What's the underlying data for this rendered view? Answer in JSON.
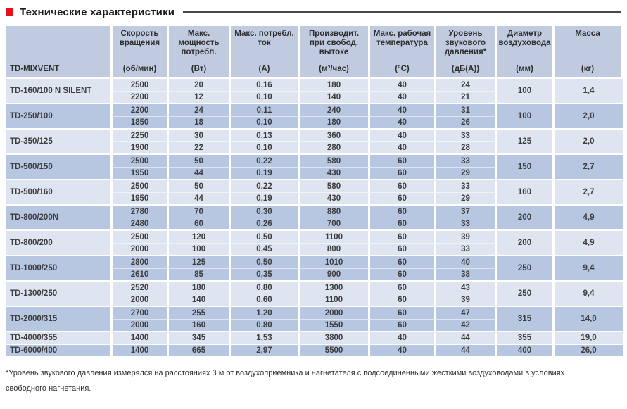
{
  "colors": {
    "accent_red": "#e8101c",
    "header_bg": "#c0cbdf",
    "row_light": "#dfe5f0",
    "row_dark": "#b7c6e1",
    "rule": "#46494b"
  },
  "section": {
    "title": "Технические характеристики"
  },
  "table": {
    "model_header": "TD-MIXVENT",
    "columns": [
      {
        "label": "Скорость вращения",
        "unit": "(об/мин)"
      },
      {
        "label": "Макс. мощность потребл.",
        "unit": "(Вт)"
      },
      {
        "label": "Макс. потребл. ток",
        "unit": "(А)"
      },
      {
        "label": "Производит. при свобод. вытоке",
        "unit": "(м³/час)"
      },
      {
        "label": "Макс. рабочая температура",
        "unit": "(°C)"
      },
      {
        "label": "Уровень звукового давления*",
        "unit": "(дБ(А))"
      },
      {
        "label": "Диаметр воздуховода",
        "unit": "(мм)"
      },
      {
        "label": "Масса",
        "unit": "(кг)"
      }
    ],
    "groups": [
      {
        "model": "TD-160/100 N SILENT",
        "rows": [
          [
            "2500",
            "20",
            "0,16",
            "180",
            "40",
            "24"
          ],
          [
            "2200",
            "12",
            "0,10",
            "140",
            "40",
            "21"
          ]
        ],
        "diameter": "100",
        "mass": "1,4"
      },
      {
        "model": "TD-250/100",
        "rows": [
          [
            "2200",
            "24",
            "0,11",
            "240",
            "40",
            "31"
          ],
          [
            "1850",
            "18",
            "0,10",
            "180",
            "40",
            "26"
          ]
        ],
        "diameter": "100",
        "mass": "2,0"
      },
      {
        "model": "TD-350/125",
        "rows": [
          [
            "2250",
            "30",
            "0,13",
            "360",
            "40",
            "33"
          ],
          [
            "1900",
            "22",
            "0,10",
            "280",
            "40",
            "28"
          ]
        ],
        "diameter": "125",
        "mass": "2,0"
      },
      {
        "model": "TD-500/150",
        "rows": [
          [
            "2500",
            "50",
            "0,22",
            "580",
            "60",
            "33"
          ],
          [
            "1950",
            "44",
            "0,19",
            "430",
            "60",
            "29"
          ]
        ],
        "diameter": "150",
        "mass": "2,7"
      },
      {
        "model": "TD-500/160",
        "rows": [
          [
            "2500",
            "50",
            "0,22",
            "580",
            "60",
            "33"
          ],
          [
            "1950",
            "44",
            "0,19",
            "430",
            "60",
            "29"
          ]
        ],
        "diameter": "160",
        "mass": "2,7"
      },
      {
        "model": "TD-800/200N",
        "rows": [
          [
            "2780",
            "70",
            "0,30",
            "880",
            "60",
            "37"
          ],
          [
            "2480",
            "60",
            "0,26",
            "700",
            "60",
            "33"
          ]
        ],
        "diameter": "200",
        "mass": "4,9"
      },
      {
        "model": "TD-800/200",
        "rows": [
          [
            "2500",
            "120",
            "0,50",
            "1100",
            "60",
            "39"
          ],
          [
            "2000",
            "100",
            "0,45",
            "800",
            "60",
            "33"
          ]
        ],
        "diameter": "200",
        "mass": "4,9"
      },
      {
        "model": "TD-1000/250",
        "rows": [
          [
            "2800",
            "125",
            "0,50",
            "1010",
            "60",
            "40"
          ],
          [
            "2610",
            "85",
            "0,35",
            "900",
            "60",
            "38"
          ]
        ],
        "diameter": "250",
        "mass": "9,4"
      },
      {
        "model": "TD-1300/250",
        "rows": [
          [
            "2520",
            "180",
            "0,80",
            "1300",
            "60",
            "43"
          ],
          [
            "2000",
            "140",
            "0,60",
            "1100",
            "60",
            "39"
          ]
        ],
        "diameter": "250",
        "mass": "9,4"
      },
      {
        "model": "TD-2000/315",
        "rows": [
          [
            "2700",
            "255",
            "1,20",
            "2000",
            "60",
            "47"
          ],
          [
            "2000",
            "160",
            "0,80",
            "1550",
            "60",
            "42"
          ]
        ],
        "diameter": "315",
        "mass": "14,0"
      },
      {
        "model": "TD-4000/355",
        "rows": [
          [
            "1400",
            "345",
            "1,53",
            "3800",
            "40",
            "44"
          ]
        ],
        "diameter": "355",
        "mass": "19,0"
      },
      {
        "model": "TD-6000/400",
        "rows": [
          [
            "1400",
            "665",
            "2,97",
            "5500",
            "40",
            "44"
          ]
        ],
        "diameter": "400",
        "mass": "26,0"
      }
    ]
  },
  "footnote": {
    "line1": "*Уровень звукового давления измерялся на расстояниях 3 м от воздухоприемника и нагнетателя с подсоединенными жесткими воздуховодами в условиях",
    "line2": "свободного нагнетания."
  }
}
